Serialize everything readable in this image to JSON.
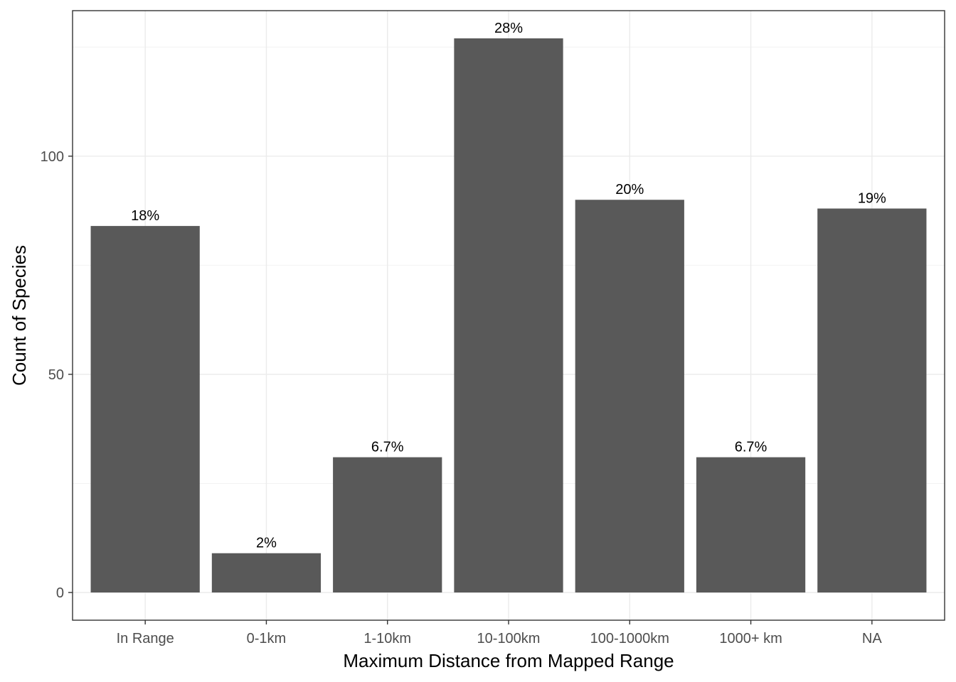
{
  "chart_data": {
    "type": "bar",
    "categories": [
      "In Range",
      "0-1km",
      "1-10km",
      "10-100km",
      "100-1000km",
      "1000+ km",
      "NA"
    ],
    "values": [
      84,
      9,
      31,
      127,
      90,
      31,
      88
    ],
    "data_labels": [
      "18%",
      "2%",
      "6.7%",
      "28%",
      "20%",
      "6.7%",
      "19%"
    ],
    "xlabel": "Maximum Distance from Mapped Range",
    "ylabel": "Count of Species",
    "yticks": [
      0,
      50,
      100
    ],
    "ylim": [
      -6.35,
      133.35
    ],
    "grid": true,
    "bar_color": "#595959"
  }
}
